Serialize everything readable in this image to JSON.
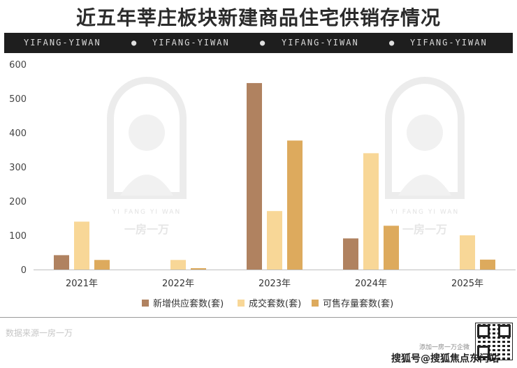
{
  "title": "近五年莘庄板块新建商品住宅供销存情况",
  "band": {
    "text": [
      "YIFANG-YIWAN",
      "YIFANG-YIWAN",
      "YIFANG-YIWAN",
      "YIFANG-YIWAN"
    ]
  },
  "watermark": {
    "label": "YI FANG YI WAN",
    "brand": "一房一万"
  },
  "chart_data": {
    "type": "bar",
    "title": "近五年莘庄板块新建商品住宅供销存情况",
    "categories": [
      "2021年",
      "2022年",
      "2023年",
      "2024年",
      "2025年"
    ],
    "series": [
      {
        "name": "新增供应套数(套)",
        "color": "#b08260",
        "values": [
          42,
          0,
          545,
          91,
          0
        ]
      },
      {
        "name": "成交套数(套)",
        "color": "#f8d797",
        "values": [
          140,
          28,
          171,
          340,
          100
        ]
      },
      {
        "name": "可售存量套数(套)",
        "color": "#ddaa5d",
        "values": [
          28,
          4,
          377,
          128,
          29
        ]
      }
    ],
    "yticks": [
      0,
      100,
      200,
      300,
      400,
      500,
      600
    ],
    "ylim": [
      0,
      600
    ],
    "grid": false,
    "legend": "bottom"
  },
  "footer": {
    "source": "数据来源一房一万",
    "qr_label": "添加一房一万企微",
    "brand": "搜狐号@搜狐焦点东门站"
  }
}
